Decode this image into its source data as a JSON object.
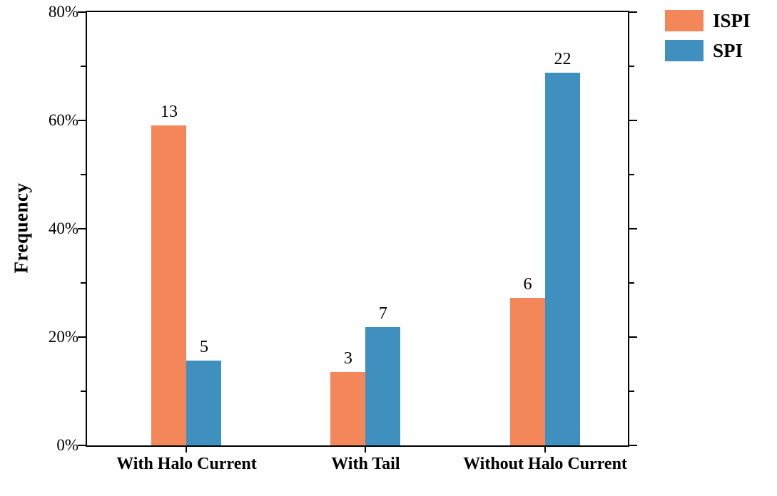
{
  "chart_data": {
    "type": "bar",
    "title": "",
    "xlabel": "",
    "ylabel": "Frequency",
    "categories": [
      "With Halo Current",
      "With Tail",
      "Without Halo Current"
    ],
    "series": [
      {
        "name": "ISPI",
        "color": "#F4875A",
        "values_pct": [
          59.1,
          13.6,
          27.3
        ],
        "count_labels": [
          "13",
          "3",
          "6"
        ]
      },
      {
        "name": "SPI",
        "color": "#3F8FBF",
        "values_pct": [
          15.6,
          21.9,
          68.8
        ],
        "count_labels": [
          "5",
          "7",
          "22"
        ]
      }
    ],
    "ylim": [
      0,
      80
    ],
    "ytick_values": [
      0,
      20,
      40,
      60,
      80
    ],
    "ytick_labels": [
      "0%",
      "20%",
      "40%",
      "60%",
      "80%"
    ],
    "minor_tick_step": 10,
    "grid": "off",
    "legend_position": "top-right-outside",
    "axis_color": "#000000",
    "background_color": "#ffffff"
  }
}
